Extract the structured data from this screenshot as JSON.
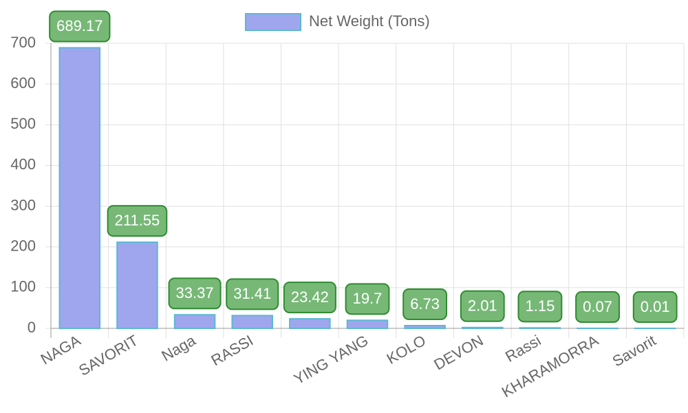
{
  "chart_data": {
    "type": "bar",
    "categories": [
      "NAGA",
      "SAVORIT",
      "Naga",
      "RASSI",
      null,
      "YING YANG",
      "KOLO",
      "DEVON",
      "Rassi",
      "KHARAMORRA",
      "Savorit"
    ],
    "series": [
      {
        "name": "Net Weight (Tons)",
        "color": "#a0a6ee",
        "values": [
          689.17,
          211.55,
          33.37,
          31.41,
          23.42,
          19.7,
          6.73,
          2.01,
          1.15,
          0.07,
          0.01
        ]
      }
    ],
    "ylim": [
      0,
      700
    ],
    "yticks": [
      0,
      100,
      200,
      300,
      400,
      500,
      600,
      700
    ],
    "grid": true,
    "legend": "top"
  }
}
